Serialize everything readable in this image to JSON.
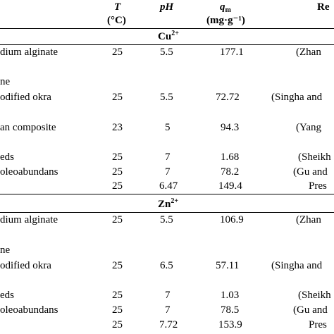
{
  "header": {
    "col_t": "T",
    "col_t_unit": "(°C)",
    "col_ph": "pH",
    "col_q": "q",
    "col_q_sub": "m",
    "col_q_unit": "(mg·g⁻¹)",
    "col_ref": "Re"
  },
  "groups": [
    {
      "ion": "Cu",
      "charge": "2+",
      "rows": [
        {
          "material": "dium alginate",
          "material2": "",
          "t": "25",
          "ph": "5.5",
          "q": "177.1",
          "ref": "(Zhan"
        },
        {
          "material": "ne",
          "material2": "odified okra",
          "t": "25",
          "ph": "5.5",
          "q": "72.72",
          "ref": "(Singha and"
        },
        {
          "material": "an composite",
          "material2": "",
          "t": "23",
          "ph": "5",
          "q": "94.3",
          "ref": "(Yang"
        },
        {
          "material": "eds",
          "material2": "",
          "t": "25",
          "ph": "7",
          "q": "1.68",
          "ref": "(Sheikh"
        },
        {
          "material": "oleoabundans",
          "material2": "",
          "t": "25",
          "ph": "7",
          "q": "78.2",
          "ref": "(Gu and"
        },
        {
          "material": "",
          "material2": "",
          "t": "25",
          "ph": "6.47",
          "q": "149.4",
          "ref": "Pres"
        }
      ]
    },
    {
      "ion": "Zn",
      "charge": "2+",
      "rows": [
        {
          "material": "dium alginate",
          "material2": "",
          "t": "25",
          "ph": "5.5",
          "q": "106.9",
          "ref": "(Zhan"
        },
        {
          "material": "ne",
          "material2": "odified okra",
          "t": "25",
          "ph": "6.5",
          "q": "57.11",
          "ref": "(Singha and"
        },
        {
          "material": "eds",
          "material2": "",
          "t": "25",
          "ph": "7",
          "q": "1.03",
          "ref": "(Sheikh"
        },
        {
          "material": "oleoabundans",
          "material2": "",
          "t": "25",
          "ph": "7",
          "q": "78.5",
          "ref": "(Gu and"
        },
        {
          "material": "",
          "material2": "",
          "t": "25",
          "ph": "7.72",
          "q": "153.9",
          "ref": "Pres"
        }
      ]
    }
  ]
}
